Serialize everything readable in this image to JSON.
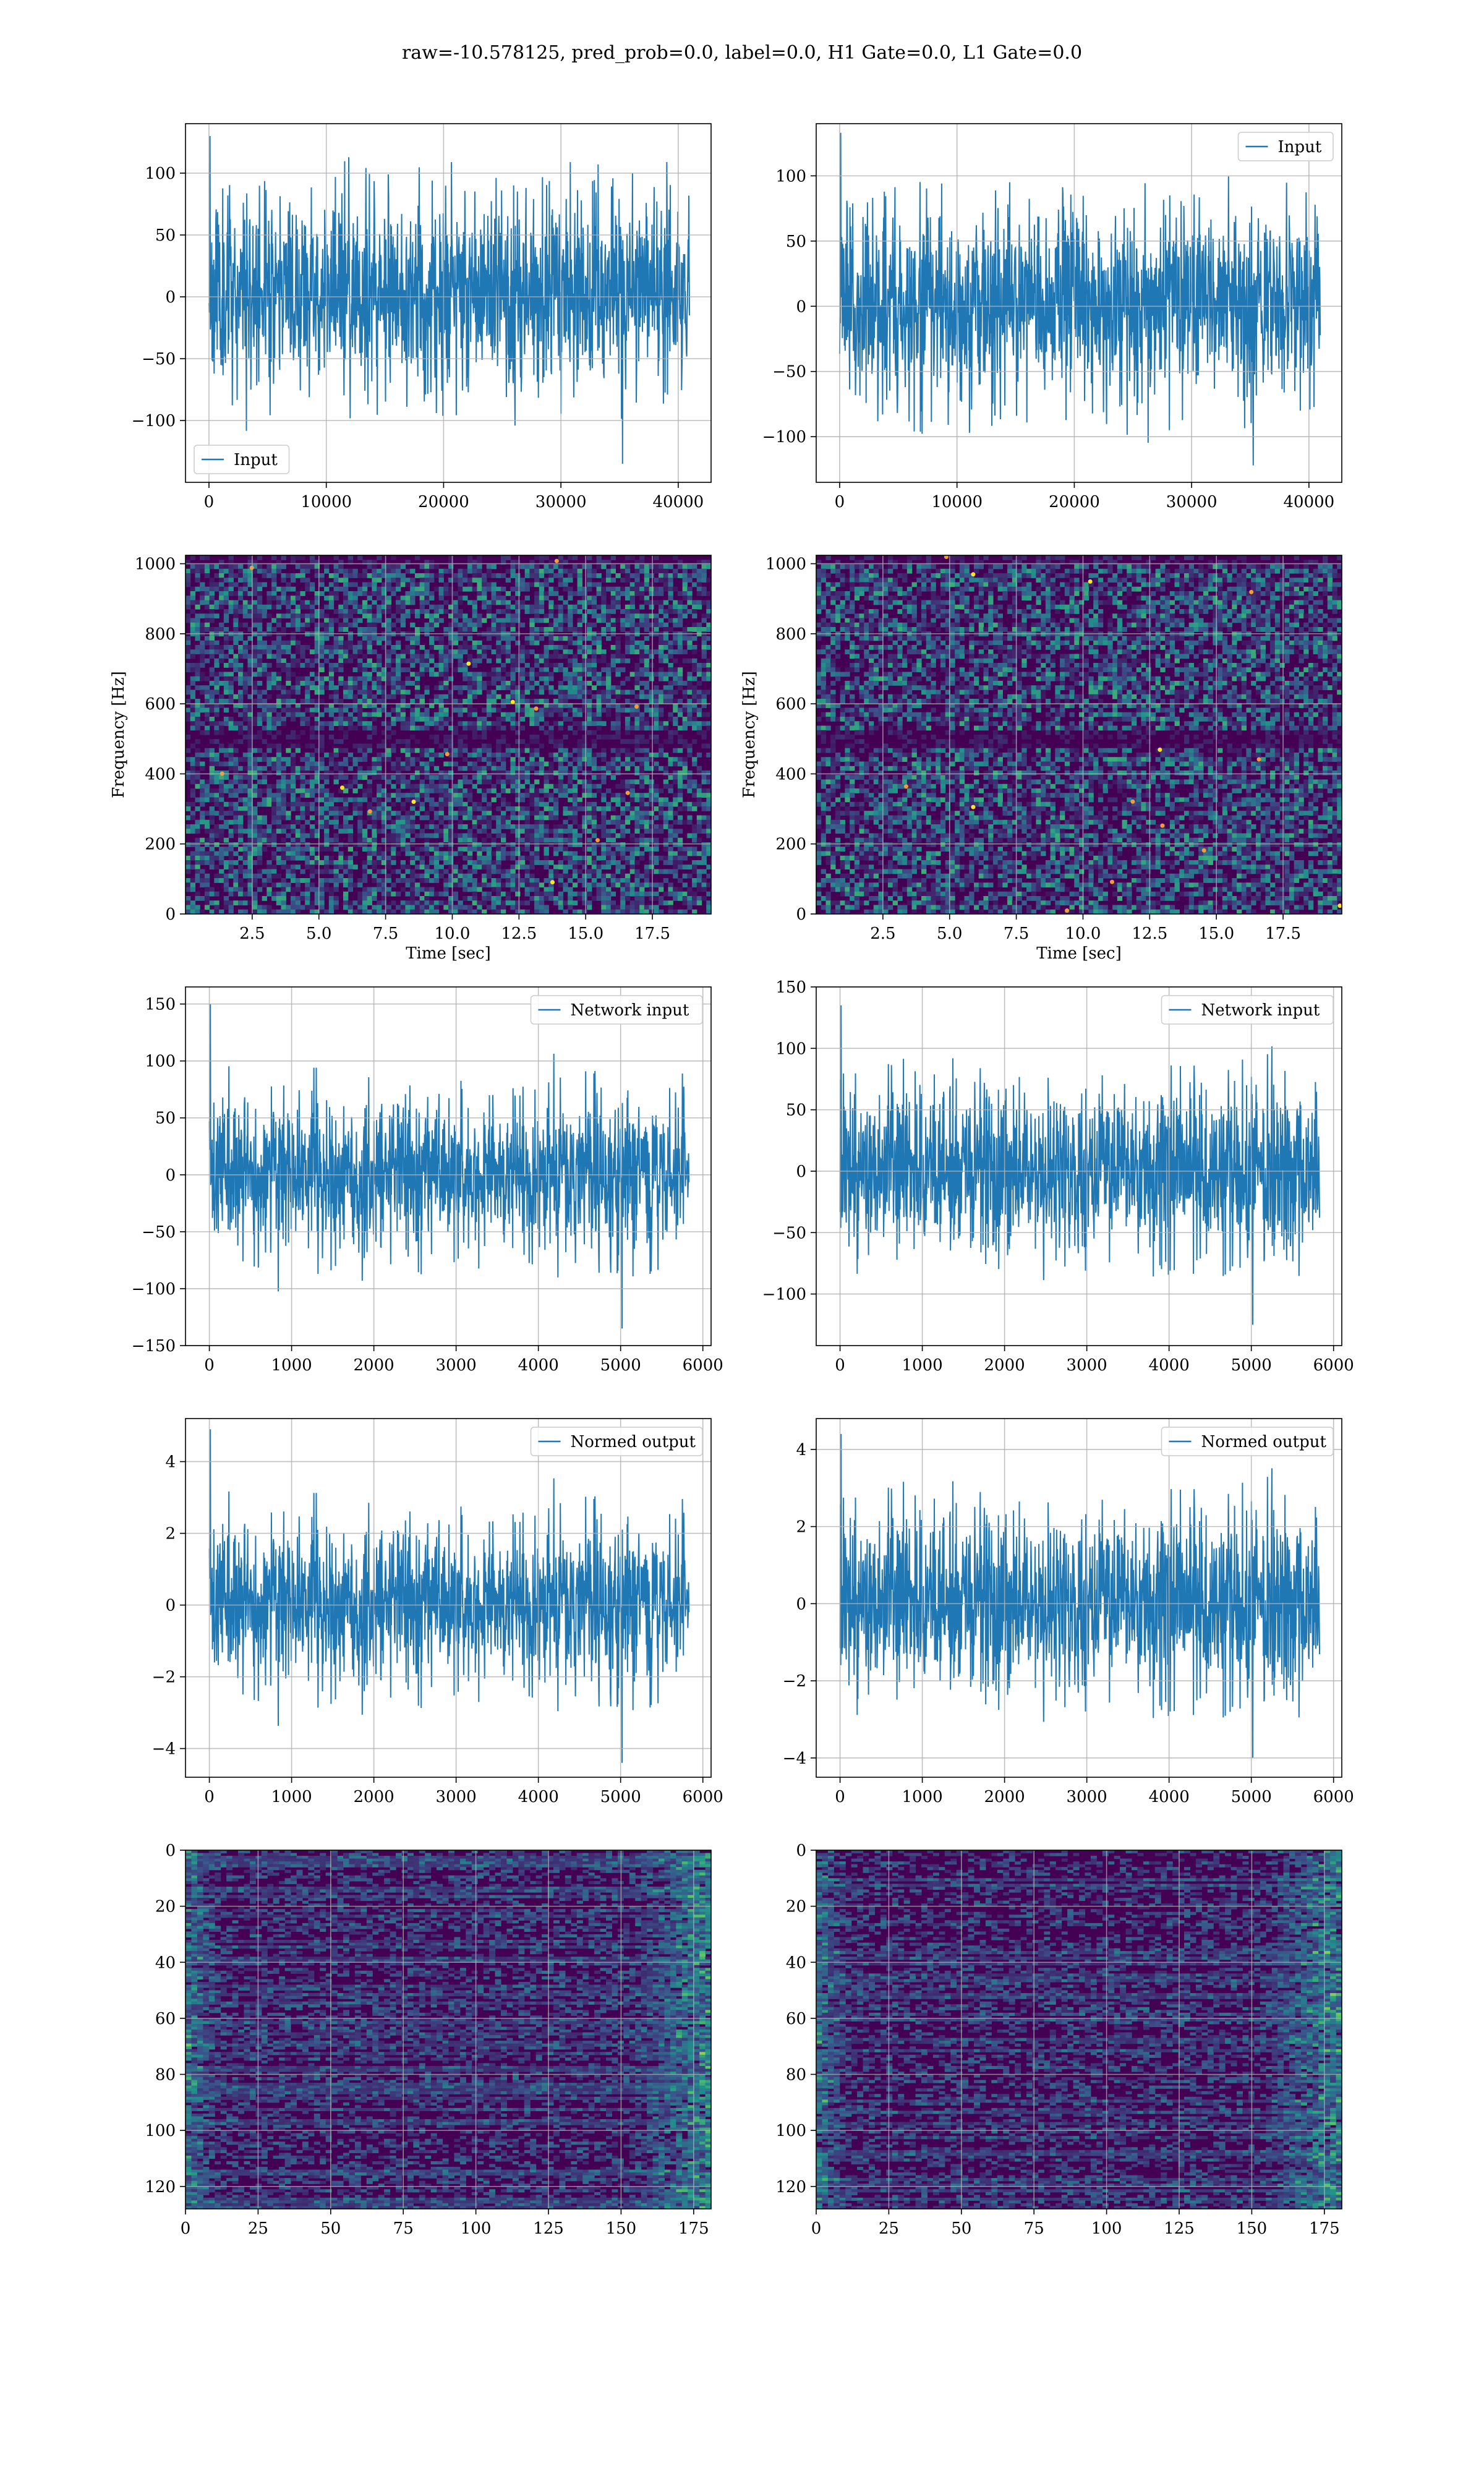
{
  "figure": {
    "suptitle": "raw=-10.578125, pred_prob=0.0, label=0.0, H1 Gate=0.0, L1 Gate=0.0"
  },
  "colors": {
    "line": "#1f77b4",
    "grid": "#b0b0b0",
    "heat_low": "#440154",
    "heat_mid": "#31688e",
    "heat_mid2": "#21918c",
    "heat_high": "#35b779",
    "heat_peak": "#fde725"
  },
  "chart_data": [
    {
      "id": "h1-input",
      "type": "line",
      "col": 0,
      "row": 0,
      "xlim": [
        -2000,
        42800
      ],
      "ylim": [
        -150,
        140
      ],
      "xticks": [
        0,
        10000,
        20000,
        30000,
        40000
      ],
      "yticks": [
        -100,
        -50,
        0,
        50,
        100
      ],
      "grid": true,
      "legend": "lower-left",
      "series": [
        {
          "name": "Input",
          "x_range": [
            0,
            40960
          ],
          "envelope": [
            -60,
            70
          ],
          "extremes": [
            -135,
            130
          ],
          "seed": 11
        }
      ]
    },
    {
      "id": "l1-input",
      "type": "line",
      "col": 1,
      "row": 0,
      "xlim": [
        -2000,
        42800
      ],
      "ylim": [
        -135,
        140
      ],
      "xticks": [
        0,
        10000,
        20000,
        30000,
        40000
      ],
      "yticks": [
        -100,
        -50,
        0,
        50,
        100
      ],
      "grid": true,
      "legend": "upper-right",
      "series": [
        {
          "name": "Input",
          "x_range": [
            0,
            40960
          ],
          "envelope": [
            -60,
            60
          ],
          "extremes": [
            -122,
            133
          ],
          "seed": 23
        }
      ]
    },
    {
      "id": "h1-spectrogram",
      "type": "heatmap",
      "col": 0,
      "row": 1,
      "xlim": [
        0,
        19.7
      ],
      "ylim": [
        0,
        1024
      ],
      "xticks": [
        2.5,
        5.0,
        7.5,
        10.0,
        12.5,
        15.0,
        17.5
      ],
      "xtick_labels": [
        "2.5",
        "5.0",
        "7.5",
        "10.0",
        "12.5",
        "15.0",
        "17.5"
      ],
      "yticks": [
        0,
        200,
        400,
        600,
        800,
        1000
      ],
      "xlabel": "Time [sec]",
      "ylabel": "Frequency [Hz]",
      "grid": true,
      "colormap": "viridis",
      "seed": 5
    },
    {
      "id": "l1-spectrogram",
      "type": "heatmap",
      "col": 1,
      "row": 1,
      "xlim": [
        0,
        19.7
      ],
      "ylim": [
        0,
        1024
      ],
      "xticks": [
        2.5,
        5.0,
        7.5,
        10.0,
        12.5,
        15.0,
        17.5
      ],
      "xtick_labels": [
        "2.5",
        "5.0",
        "7.5",
        "10.0",
        "12.5",
        "15.0",
        "17.5"
      ],
      "yticks": [
        0,
        200,
        400,
        600,
        800,
        1000
      ],
      "xlabel": "Time [sec]",
      "ylabel": "Frequency [Hz]",
      "grid": true,
      "colormap": "viridis",
      "seed": 9
    },
    {
      "id": "h1-network-input",
      "type": "line",
      "col": 0,
      "row": 2,
      "xlim": [
        -290,
        6100
      ],
      "ylim": [
        -150,
        165
      ],
      "xticks": [
        0,
        1000,
        2000,
        3000,
        4000,
        5000,
        6000
      ],
      "yticks": [
        -150,
        -100,
        -50,
        0,
        50,
        100,
        150
      ],
      "grid": true,
      "legend": "upper-right",
      "series": [
        {
          "name": "Network input",
          "x_range": [
            0,
            5830
          ],
          "envelope": [
            -55,
            60
          ],
          "extremes": [
            -135,
            150
          ],
          "seed": 31
        }
      ]
    },
    {
      "id": "l1-network-input",
      "type": "line",
      "col": 1,
      "row": 2,
      "xlim": [
        -290,
        6100
      ],
      "ylim": [
        -142,
        150
      ],
      "xticks": [
        0,
        1000,
        2000,
        3000,
        4000,
        5000,
        6000
      ],
      "yticks": [
        -100,
        -50,
        0,
        50,
        100,
        150
      ],
      "grid": true,
      "legend": "upper-right",
      "series": [
        {
          "name": "Network input",
          "x_range": [
            0,
            5830
          ],
          "envelope": [
            -55,
            55
          ],
          "extremes": [
            -125,
            135
          ],
          "seed": 37
        }
      ]
    },
    {
      "id": "h1-normed-output",
      "type": "line",
      "col": 0,
      "row": 3,
      "xlim": [
        -290,
        6100
      ],
      "ylim": [
        -4.8,
        5.2
      ],
      "xticks": [
        0,
        1000,
        2000,
        3000,
        4000,
        5000,
        6000
      ],
      "yticks": [
        -4,
        -2,
        0,
        2,
        4
      ],
      "grid": true,
      "legend": "upper-right",
      "series": [
        {
          "name": "Normed output",
          "x_range": [
            0,
            5830
          ],
          "envelope": [
            -1.8,
            2.0
          ],
          "extremes": [
            -4.4,
            4.9
          ],
          "seed": 31
        }
      ]
    },
    {
      "id": "l1-normed-output",
      "type": "line",
      "col": 1,
      "row": 3,
      "xlim": [
        -290,
        6100
      ],
      "ylim": [
        -4.5,
        4.8
      ],
      "xticks": [
        0,
        1000,
        2000,
        3000,
        4000,
        5000,
        6000
      ],
      "yticks": [
        -4,
        -2,
        0,
        2,
        4
      ],
      "grid": true,
      "legend": "upper-right",
      "series": [
        {
          "name": "Normed output",
          "x_range": [
            0,
            5830
          ],
          "envelope": [
            -1.9,
            1.9
          ],
          "extremes": [
            -4.0,
            4.4
          ],
          "seed": 37
        }
      ]
    },
    {
      "id": "h1-features",
      "type": "heatmap",
      "col": 0,
      "row": 4,
      "xlim": [
        0,
        181
      ],
      "ylim": [
        128,
        0
      ],
      "xticks": [
        0,
        25,
        50,
        75,
        100,
        125,
        150,
        175
      ],
      "yticks": [
        0,
        20,
        40,
        60,
        80,
        100,
        120
      ],
      "grid": true,
      "colormap": "viridis",
      "seed": 41
    },
    {
      "id": "l1-features",
      "type": "heatmap",
      "col": 1,
      "row": 4,
      "xlim": [
        0,
        181
      ],
      "ylim": [
        128,
        0
      ],
      "xticks": [
        0,
        25,
        50,
        75,
        100,
        125,
        150,
        175
      ],
      "yticks": [
        0,
        20,
        40,
        60,
        80,
        100,
        120
      ],
      "grid": true,
      "colormap": "viridis",
      "seed": 43
    }
  ]
}
